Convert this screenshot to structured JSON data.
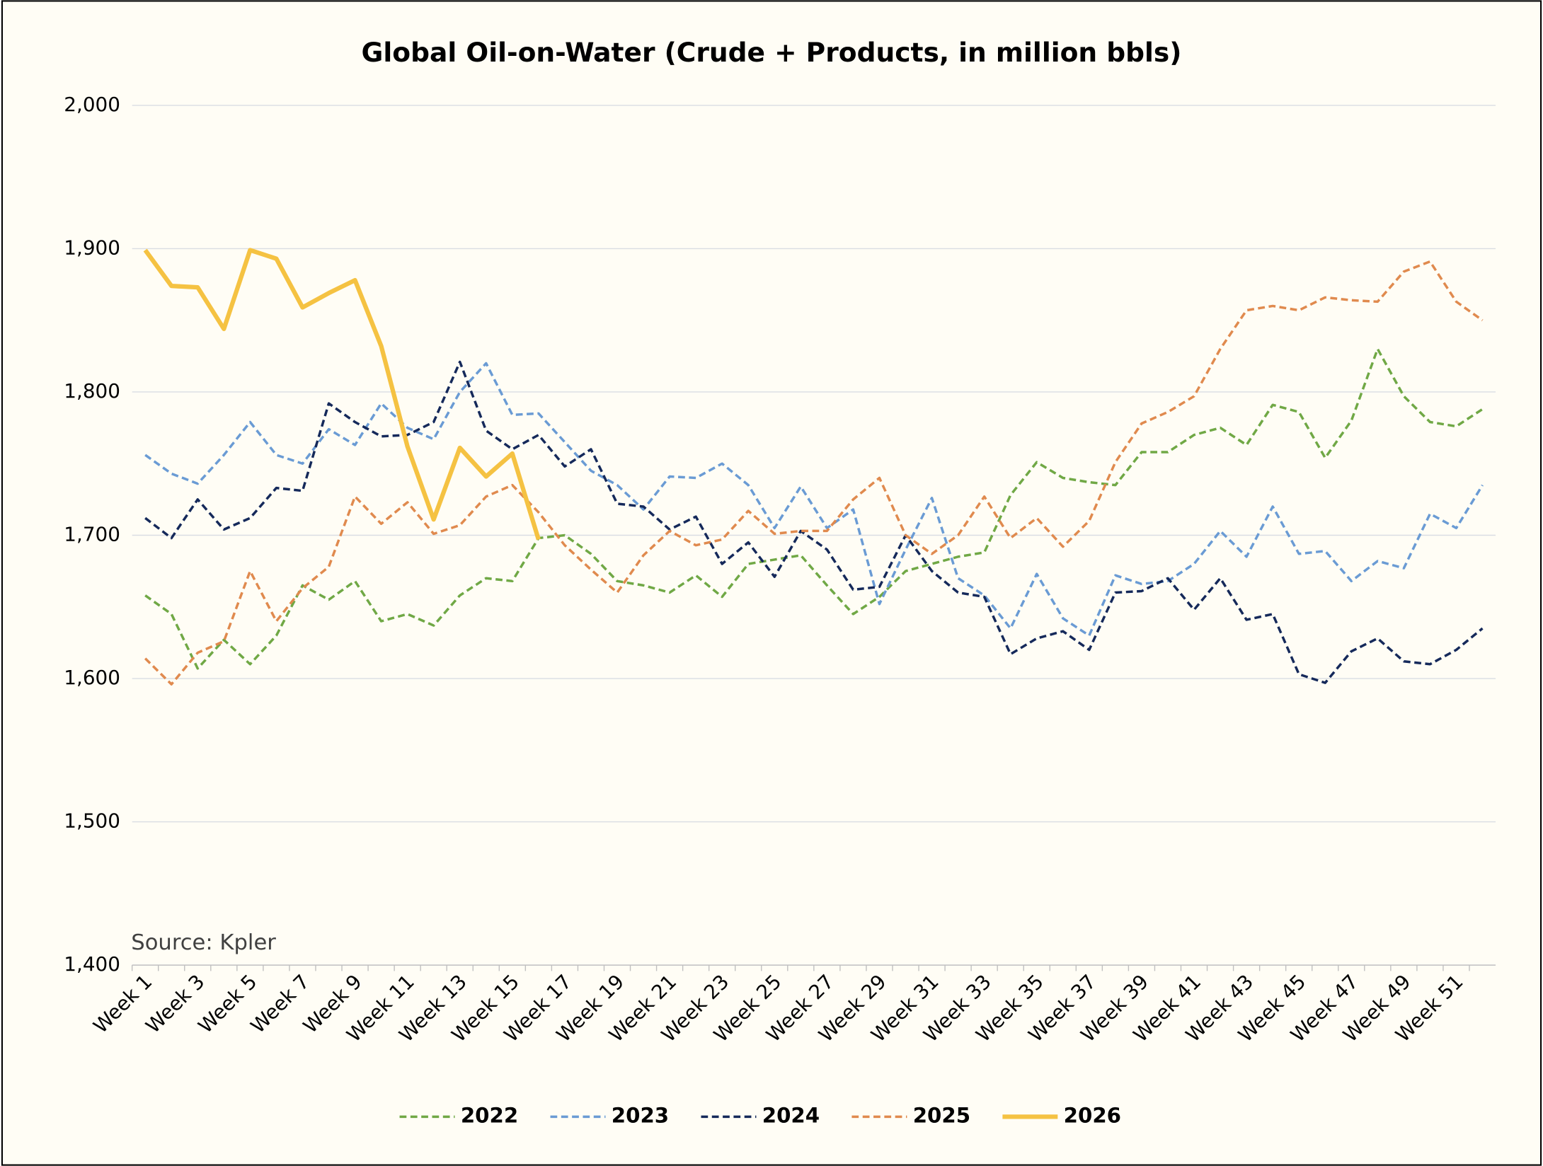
{
  "chart_data": {
    "type": "line",
    "title": "Global Oil-on-Water (Crude + Products, in million bbls)",
    "annotation": "Source: Kpler",
    "categories": [
      "Week 1",
      null,
      "Week 3",
      null,
      "Week 5",
      null,
      "Week 7",
      null,
      "Week 9",
      null,
      "Week 11",
      null,
      "Week 13",
      null,
      "Week 15",
      null,
      "Week 17",
      null,
      "Week 19",
      null,
      "Week 21",
      null,
      "Week 23",
      null,
      "Week 25",
      null,
      "Week 27",
      null,
      "Week 29",
      null,
      "Week 31",
      null,
      "Week 33",
      null,
      "Week 35",
      null,
      "Week 37",
      null,
      "Week 39",
      null,
      "Week 41",
      null,
      "Week 43",
      null,
      "Week 45",
      null,
      "Week 47",
      null,
      "Week 49",
      null,
      "Week 51",
      null
    ],
    "ylim": [
      1400,
      2000
    ],
    "yticks": [
      {
        "value": 1400,
        "label": "1,400"
      },
      {
        "value": 1500,
        "label": "1,500"
      },
      {
        "value": 1600,
        "label": "1,600"
      },
      {
        "value": 1700,
        "label": "1,700"
      },
      {
        "value": 1800,
        "label": "1,800"
      },
      {
        "value": 1900,
        "label": "1,900"
      },
      {
        "value": 2000,
        "label": "2,000"
      }
    ],
    "grid": true,
    "legend": "bottom",
    "series": [
      {
        "name": "2022",
        "color": "#70a845",
        "dashed": true,
        "values": [
          1658,
          1645,
          1607,
          1627,
          1610,
          1630,
          1665,
          1655,
          1668,
          1640,
          1645,
          1637,
          1658,
          1670,
          1668,
          1698,
          1700,
          1687,
          1668,
          1665,
          1660,
          1672,
          1657,
          1680,
          1683,
          1686,
          1665,
          1645,
          1657,
          1675,
          1680,
          1685,
          1688,
          1728,
          1751,
          1740,
          1737,
          1735,
          1758,
          1758,
          1770,
          1775,
          1763,
          1791,
          1786,
          1754,
          1780,
          1830,
          1797,
          1779,
          1776,
          1788
        ]
      },
      {
        "name": "2023",
        "color": "#6a9bd4",
        "dashed": true,
        "values": [
          1756,
          1743,
          1736,
          1756,
          1779,
          1756,
          1750,
          1774,
          1763,
          1792,
          1775,
          1767,
          1800,
          1820,
          1784,
          1785,
          1765,
          1745,
          1735,
          1718,
          1741,
          1740,
          1750,
          1735,
          1705,
          1734,
          1705,
          1718,
          1652,
          1690,
          1726,
          1670,
          1658,
          1635,
          1673,
          1642,
          1630,
          1672,
          1666,
          1668,
          1680,
          1703,
          1685,
          1720,
          1687,
          1689,
          1668,
          1682,
          1677,
          1715,
          1705,
          1735
        ]
      },
      {
        "name": "2024",
        "color": "#15295a",
        "dashed": true,
        "values": [
          1712,
          1698,
          1725,
          1704,
          1712,
          1733,
          1731,
          1792,
          1779,
          1769,
          1770,
          1779,
          1821,
          1773,
          1760,
          1770,
          1748,
          1760,
          1722,
          1720,
          1704,
          1713,
          1680,
          1695,
          1671,
          1703,
          1690,
          1662,
          1664,
          1700,
          1675,
          1660,
          1657,
          1617,
          1628,
          1633,
          1620,
          1660,
          1661,
          1670,
          1648,
          1670,
          1641,
          1645,
          1603,
          1597,
          1619,
          1628,
          1612,
          1610,
          1620,
          1635
        ]
      },
      {
        "name": "2025",
        "color": "#e08a4e",
        "dashed": true,
        "values": [
          1614,
          1596,
          1618,
          1626,
          1675,
          1640,
          1663,
          1678,
          1727,
          1708,
          1723,
          1701,
          1707,
          1727,
          1735,
          1716,
          1693,
          1676,
          1660,
          1686,
          1703,
          1693,
          1697,
          1717,
          1701,
          1703,
          1703,
          1725,
          1740,
          1700,
          1687,
          1700,
          1727,
          1698,
          1712,
          1692,
          1710,
          1751,
          1778,
          1786,
          1797,
          1830,
          1857,
          1860,
          1857,
          1866,
          1864,
          1863,
          1884,
          1891,
          1863,
          1850
        ]
      },
      {
        "name": "2026",
        "color": "#f5c242",
        "dashed": false,
        "values": [
          1899,
          1874,
          1873,
          1844,
          1899,
          1893,
          1859,
          1869,
          1878,
          1832,
          1762,
          1711,
          1761,
          1741,
          1757,
          1697,
          null,
          null,
          null,
          null,
          null,
          null,
          null,
          null,
          null,
          null,
          null,
          null,
          null,
          null,
          null,
          null,
          null,
          null,
          null,
          null,
          null,
          null,
          null,
          null,
          null,
          null,
          null,
          null,
          null,
          null,
          null,
          null,
          null,
          null,
          null,
          null
        ]
      }
    ]
  }
}
